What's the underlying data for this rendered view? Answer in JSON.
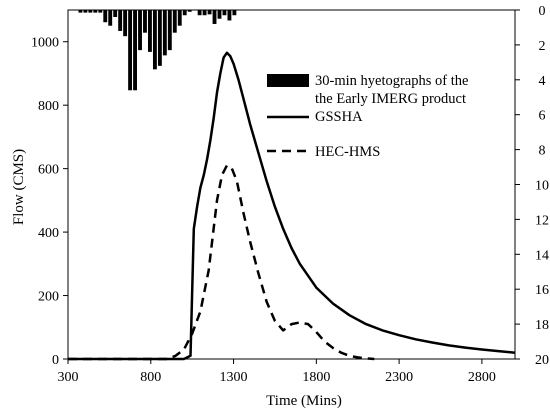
{
  "chart_data": {
    "type": "line",
    "xlabel": "Time (Mins)",
    "ylabel": "Flow (CMS)",
    "xlim": [
      300,
      3000
    ],
    "ylim": [
      0,
      1100
    ],
    "xticks": [
      300,
      800,
      1300,
      1800,
      2300,
      2800
    ],
    "yticks": [
      0,
      200,
      400,
      600,
      800,
      1000
    ],
    "y2lim": [
      0,
      20
    ],
    "y2_inverted": true,
    "y2ticks": [
      0,
      2,
      4,
      6,
      8,
      10,
      12,
      14,
      16,
      18,
      20
    ],
    "grid": false,
    "legend_position": "top-right",
    "legend": [
      {
        "label": "30-min hyetographs of the",
        "label2": "the Early IMERG product",
        "style": "bar"
      },
      {
        "label": "GSSHA",
        "style": "solid"
      },
      {
        "label": "HEC-HMS",
        "style": "dashed"
      }
    ],
    "hyetograph": {
      "name": "30-min hyetographs of the the Early IMERG product",
      "axis": "secondary",
      "x": [
        375,
        405,
        435,
        465,
        495,
        525,
        555,
        585,
        615,
        645,
        675,
        705,
        735,
        765,
        795,
        825,
        855,
        885,
        915,
        945,
        975,
        1005,
        1035,
        1065,
        1095,
        1125,
        1155,
        1185,
        1215,
        1245,
        1275,
        1305
      ],
      "values": [
        0.15,
        0.15,
        0.15,
        0.15,
        0.15,
        0.7,
        0.9,
        0.4,
        1.2,
        1.5,
        4.6,
        4.6,
        2.3,
        1.3,
        2.4,
        3.4,
        3.2,
        2.6,
        2.3,
        1.3,
        0.9,
        0.3,
        0.1,
        0,
        0.3,
        0.3,
        0.25,
        0.8,
        0.5,
        0.3,
        0.6,
        0.3
      ]
    },
    "series": [
      {
        "name": "GSSHA",
        "style": "solid",
        "x": [
          300,
          1000,
          1040,
          1060,
          1080,
          1100,
          1120,
          1140,
          1160,
          1180,
          1200,
          1220,
          1240,
          1260,
          1280,
          1300,
          1330,
          1360,
          1400,
          1450,
          1500,
          1550,
          1600,
          1650,
          1700,
          1800,
          1900,
          2000,
          2100,
          2200,
          2300,
          2400,
          2500,
          2600,
          2700,
          2800,
          2900,
          3000
        ],
        "values": [
          0,
          0,
          10,
          410,
          480,
          540,
          580,
          630,
          690,
          760,
          840,
          900,
          950,
          965,
          955,
          930,
          880,
          820,
          740,
          650,
          560,
          480,
          410,
          350,
          300,
          225,
          175,
          138,
          110,
          90,
          75,
          62,
          52,
          43,
          36,
          30,
          25,
          20
        ]
      },
      {
        "name": "HEC-HMS",
        "style": "dashed",
        "x": [
          300,
          900,
          950,
          1000,
          1050,
          1100,
          1150,
          1200,
          1230,
          1260,
          1290,
          1320,
          1360,
          1400,
          1450,
          1500,
          1550,
          1600,
          1650,
          1700,
          1750,
          1800,
          1850,
          1900,
          1950,
          2000,
          2050,
          2100,
          2150
        ],
        "values": [
          0,
          0,
          10,
          30,
          80,
          150,
          280,
          500,
          580,
          610,
          600,
          560,
          460,
          370,
          270,
          180,
          120,
          90,
          110,
          115,
          110,
          85,
          55,
          35,
          20,
          10,
          5,
          2,
          0
        ]
      }
    ]
  }
}
